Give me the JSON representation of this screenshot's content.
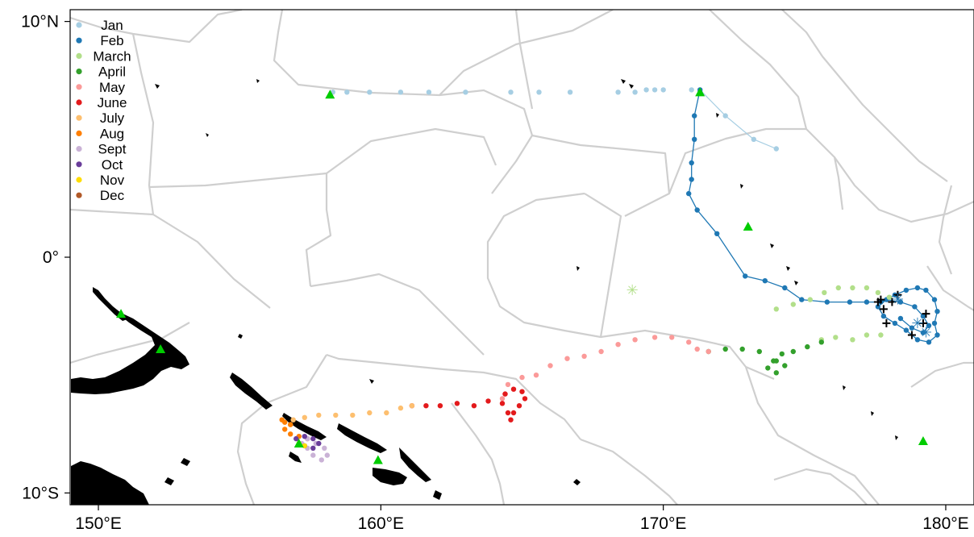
{
  "map": {
    "lon_range": [
      149,
      181
    ],
    "lat_range": [
      -10.5,
      10.5
    ],
    "x_ticks": [
      {
        "value": 150,
        "label": "150°E"
      },
      {
        "value": 160,
        "label": "160°E"
      },
      {
        "value": 170,
        "label": "170°E"
      },
      {
        "value": 180,
        "label": "180°E"
      }
    ],
    "y_ticks": [
      {
        "value": 10,
        "label": "10°N"
      },
      {
        "value": 0,
        "label": "0°"
      },
      {
        "value": -10,
        "label": "10°S"
      }
    ],
    "boundary_color": "#cfcfcf",
    "land_color": "#000000"
  },
  "legend": {
    "placement": "top-left",
    "items": [
      {
        "label": "Jan",
        "color": "#a6cee3"
      },
      {
        "label": "Feb",
        "color": "#1f78b4"
      },
      {
        "label": "March",
        "color": "#b2df8a"
      },
      {
        "label": "April",
        "color": "#33a02c"
      },
      {
        "label": "May",
        "color": "#fb9a99"
      },
      {
        "label": "June",
        "color": "#e31a1c"
      },
      {
        "label": "July",
        "color": "#fdbf6f"
      },
      {
        "label": "Aug",
        "color": "#ff7f00"
      },
      {
        "label": "Sept",
        "color": "#cab2d6"
      },
      {
        "label": "Oct",
        "color": "#6a3d9a"
      },
      {
        "label": "Nov",
        "color": "#ffdd00"
      },
      {
        "label": "Dec",
        "color": "#b15928"
      }
    ]
  },
  "markers": {
    "triangle_color": "#00cc00",
    "triangles": [
      [
        158.2,
        6.9
      ],
      [
        171.3,
        7.0
      ],
      [
        173.0,
        1.3
      ],
      [
        150.8,
        -2.4
      ],
      [
        152.2,
        -3.9
      ],
      [
        157.1,
        -7.9
      ],
      [
        159.9,
        -8.6
      ],
      [
        179.2,
        -7.8
      ]
    ],
    "crosses": [
      [
        177.7,
        -1.8
      ],
      [
        177.8,
        -2.2
      ],
      [
        177.9,
        -2.8
      ],
      [
        178.3,
        -1.6
      ],
      [
        178.1,
        -1.9
      ],
      [
        179.3,
        -2.4
      ],
      [
        179.2,
        -2.8
      ],
      [
        178.8,
        -3.3
      ],
      [
        177.6,
        -1.9
      ]
    ],
    "cross_color": "#000000",
    "asterisk_symbol": "✳",
    "asterisks": [
      {
        "lon": 168.9,
        "lat": -1.4,
        "color": "#b2df8a"
      },
      {
        "lon": 178.3,
        "lat": -1.8,
        "color": "#1f78b4"
      },
      {
        "lon": 179.0,
        "lat": -2.8,
        "color": "#1f78b4"
      },
      {
        "lon": 179.3,
        "lat": -3.2,
        "color": "#1f78b4"
      }
    ]
  },
  "track": {
    "Jan": [
      [
        158.3,
        7.0
      ],
      [
        158.8,
        7.0
      ],
      [
        159.6,
        7.0
      ],
      [
        160.7,
        7.0
      ],
      [
        161.7,
        7.0
      ],
      [
        163.0,
        7.0
      ],
      [
        164.6,
        7.0
      ],
      [
        165.6,
        7.0
      ],
      [
        166.7,
        7.0
      ],
      [
        168.4,
        7.0
      ],
      [
        169.0,
        7.0
      ],
      [
        169.4,
        7.1
      ],
      [
        169.7,
        7.1
      ],
      [
        170.0,
        7.1
      ],
      [
        171.0,
        7.1
      ],
      [
        171.3,
        7.1
      ],
      [
        172.2,
        6.0
      ],
      [
        173.2,
        5.0
      ],
      [
        174.0,
        4.6
      ]
    ],
    "Feb": [
      [
        171.3,
        7.0
      ],
      [
        171.3,
        7.1
      ],
      [
        171.1,
        6.0
      ],
      [
        171.1,
        5.0
      ],
      [
        171.0,
        4.0
      ],
      [
        171.0,
        3.3
      ],
      [
        170.9,
        2.7
      ],
      [
        171.2,
        2.0
      ],
      [
        171.9,
        1.0
      ],
      [
        172.9,
        -0.8
      ],
      [
        173.6,
        -1.0
      ],
      [
        174.3,
        -1.3
      ],
      [
        174.9,
        -1.8
      ],
      [
        175.8,
        -1.9
      ],
      [
        176.6,
        -1.9
      ],
      [
        177.2,
        -1.9
      ],
      [
        177.7,
        -1.9
      ],
      [
        178.2,
        -1.6
      ],
      [
        178.6,
        -1.4
      ],
      [
        179.0,
        -1.3
      ],
      [
        179.3,
        -1.4
      ],
      [
        179.6,
        -1.8
      ],
      [
        179.7,
        -2.3
      ],
      [
        179.6,
        -2.8
      ],
      [
        179.7,
        -3.3
      ],
      [
        179.4,
        -3.6
      ],
      [
        179.0,
        -3.5
      ],
      [
        178.6,
        -3.1
      ],
      [
        178.2,
        -2.8
      ],
      [
        177.8,
        -2.5
      ],
      [
        177.6,
        -2.1
      ],
      [
        177.9,
        -1.8
      ],
      [
        178.4,
        -1.9
      ],
      [
        178.9,
        -2.1
      ],
      [
        179.2,
        -2.5
      ],
      [
        179.4,
        -2.9
      ],
      [
        179.2,
        -3.2
      ],
      [
        178.8,
        -3.0
      ],
      [
        178.4,
        -2.6
      ]
    ],
    "March": [
      [
        174.0,
        -2.2
      ],
      [
        174.6,
        -2.0
      ],
      [
        175.2,
        -1.8
      ],
      [
        175.7,
        -1.5
      ],
      [
        176.2,
        -1.3
      ],
      [
        176.7,
        -1.3
      ],
      [
        177.2,
        -1.3
      ],
      [
        177.6,
        -1.5
      ],
      [
        178.0,
        -1.7
      ],
      [
        177.7,
        -3.3
      ],
      [
        177.2,
        -3.3
      ],
      [
        176.7,
        -3.5
      ],
      [
        176.1,
        -3.4
      ],
      [
        175.6,
        -3.5
      ]
    ],
    "April": [
      [
        175.6,
        -3.6
      ],
      [
        175.1,
        -3.8
      ],
      [
        174.6,
        -4.0
      ],
      [
        174.2,
        -4.1
      ],
      [
        174.0,
        -4.4
      ],
      [
        174.3,
        -4.6
      ],
      [
        174.0,
        -4.9
      ],
      [
        173.7,
        -4.7
      ],
      [
        173.9,
        -4.4
      ],
      [
        173.4,
        -4.0
      ],
      [
        172.8,
        -3.9
      ],
      [
        172.2,
        -3.9
      ],
      [
        171.6,
        -4.0
      ]
    ],
    "May": [
      [
        171.6,
        -4.0
      ],
      [
        171.2,
        -3.9
      ],
      [
        170.9,
        -3.6
      ],
      [
        170.3,
        -3.4
      ],
      [
        169.7,
        -3.4
      ],
      [
        169.0,
        -3.5
      ],
      [
        168.4,
        -3.7
      ],
      [
        167.8,
        -4.0
      ],
      [
        167.2,
        -4.2
      ],
      [
        166.6,
        -4.3
      ],
      [
        166.0,
        -4.6
      ],
      [
        165.5,
        -5.0
      ],
      [
        165.0,
        -5.1
      ],
      [
        164.5,
        -5.4
      ],
      [
        164.4,
        -5.8
      ],
      [
        164.3,
        -6.0
      ]
    ],
    "June": [
      [
        164.4,
        -5.8
      ],
      [
        164.7,
        -5.6
      ],
      [
        165.0,
        -5.7
      ],
      [
        165.1,
        -6.0
      ],
      [
        164.9,
        -6.3
      ],
      [
        164.7,
        -6.6
      ],
      [
        164.6,
        -6.9
      ],
      [
        164.5,
        -6.6
      ],
      [
        164.3,
        -6.2
      ],
      [
        163.8,
        -6.1
      ],
      [
        163.3,
        -6.3
      ],
      [
        162.7,
        -6.2
      ],
      [
        162.1,
        -6.3
      ],
      [
        161.6,
        -6.3
      ],
      [
        161.1,
        -6.3
      ]
    ],
    "July": [
      [
        161.1,
        -6.3
      ],
      [
        160.7,
        -6.4
      ],
      [
        160.2,
        -6.6
      ],
      [
        159.6,
        -6.6
      ],
      [
        159.0,
        -6.7
      ],
      [
        158.4,
        -6.7
      ],
      [
        157.8,
        -6.7
      ],
      [
        157.3,
        -6.8
      ],
      [
        156.9,
        -6.9
      ],
      [
        156.8,
        -7.1
      ]
    ],
    "Aug": [
      [
        156.8,
        -7.1
      ],
      [
        156.6,
        -7.0
      ],
      [
        156.5,
        -6.9
      ],
      [
        156.6,
        -7.3
      ],
      [
        156.8,
        -7.5
      ],
      [
        157.1,
        -7.6
      ],
      [
        157.4,
        -7.7
      ]
    ],
    "Sept": [
      [
        157.4,
        -7.7
      ],
      [
        157.7,
        -7.9
      ],
      [
        158.0,
        -8.1
      ],
      [
        158.1,
        -8.4
      ],
      [
        157.9,
        -8.6
      ],
      [
        157.6,
        -8.4
      ],
      [
        157.4,
        -8.1
      ],
      [
        157.2,
        -7.9
      ],
      [
        157.0,
        -7.7
      ]
    ],
    "Oct": [
      [
        157.0,
        -7.7
      ],
      [
        157.3,
        -7.6
      ],
      [
        157.6,
        -7.7
      ],
      [
        157.8,
        -7.9
      ],
      [
        157.6,
        -8.1
      ],
      [
        157.3,
        -8.0
      ]
    ],
    "Nov": [
      [
        157.3,
        -8.0
      ],
      [
        157.1,
        -7.9
      ]
    ],
    "Dec": []
  }
}
